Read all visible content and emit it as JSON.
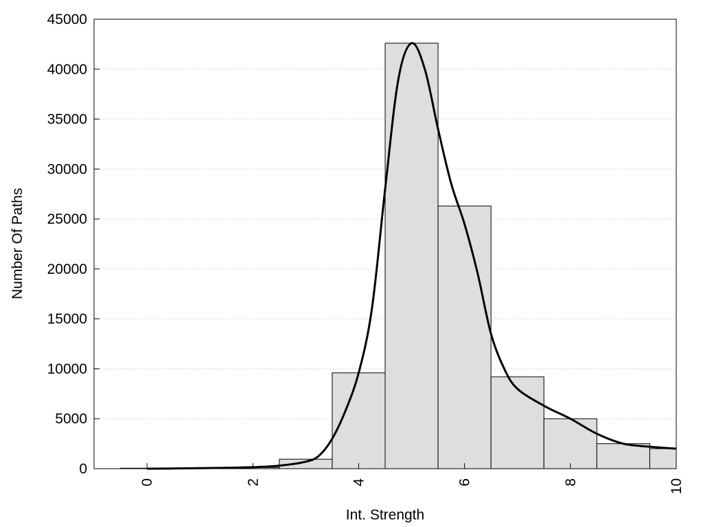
{
  "chart_data": {
    "type": "bar",
    "title": "",
    "xlabel": "Int. Strength",
    "ylabel": "Number Of Paths",
    "xlim": [
      -1,
      10
    ],
    "ylim": [
      0,
      45000
    ],
    "grid": "horizontal dotted",
    "legend": "none",
    "x_ticks": [
      0,
      2,
      4,
      6,
      8,
      10
    ],
    "x_tick_labels": [
      "0",
      "2",
      "4",
      "6",
      "8",
      "10"
    ],
    "y_ticks": [
      0,
      5000,
      10000,
      15000,
      20000,
      25000,
      30000,
      35000,
      40000,
      45000
    ],
    "y_tick_labels": [
      "0",
      "5000",
      "10000",
      "15000",
      "20000",
      "25000",
      "30000",
      "35000",
      "40000",
      "45000"
    ],
    "bar_width": 1,
    "categories": [
      0,
      1,
      2,
      3,
      4,
      5,
      6,
      7,
      8,
      9,
      10
    ],
    "values": [
      50,
      60,
      120,
      950,
      9600,
      42600,
      26300,
      9200,
      5000,
      2500,
      2000
    ],
    "curve": {
      "x": [
        0,
        0.5,
        1,
        1.5,
        2,
        2.5,
        3,
        3.25,
        3.5,
        3.75,
        4,
        4.25,
        4.5,
        4.75,
        5,
        5.25,
        5.5,
        5.75,
        6,
        6.25,
        6.5,
        6.75,
        7,
        7.5,
        8,
        8.5,
        9,
        9.5,
        10
      ],
      "y": [
        0,
        20,
        50,
        90,
        150,
        300,
        700,
        1300,
        3000,
        5800,
        9600,
        16000,
        28000,
        39000,
        42600,
        40000,
        34000,
        28500,
        24500,
        19500,
        13500,
        10000,
        8000,
        6300,
        5000,
        3500,
        2500,
        2200,
        2000
      ]
    },
    "colors": {
      "bar_fill": "#dedede",
      "bar_stroke": "#000000",
      "curve": "#000000",
      "grid": "#bbbbbb"
    }
  }
}
